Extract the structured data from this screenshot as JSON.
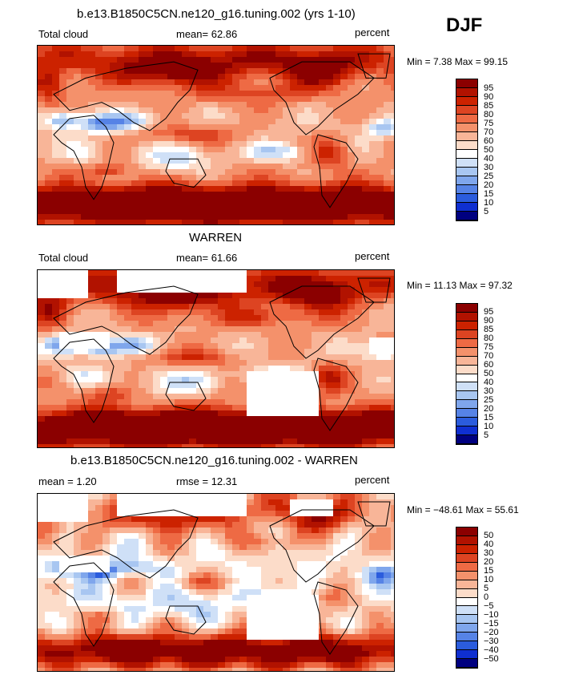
{
  "season": "DJF",
  "panels": [
    {
      "title": "b.e13.B1850C5CN.ne120_g16.tuning.002 (yrs 1-10)",
      "left_label": "Total cloud",
      "center_label": "mean=  62.86",
      "right_label": "percent",
      "min_max": "Min =   7.38 Max =  99.15",
      "colorbar": {
        "colors": [
          "#8b0000",
          "#b11200",
          "#cc2200",
          "#dd4422",
          "#ee6a44",
          "#f4916b",
          "#f8b598",
          "#fcdcc9",
          "#ffffff",
          "#cfe0f7",
          "#a8c6f1",
          "#7fa6ec",
          "#5683e6",
          "#2b5cdd",
          "#0f2fd1",
          "#000080"
        ],
        "labels": [
          "95",
          "90",
          "85",
          "80",
          "75",
          "70",
          "60",
          "50",
          "40",
          "30",
          "25",
          "20",
          "15",
          "10",
          "5"
        ]
      }
    },
    {
      "title": "WARREN",
      "left_label": "Total cloud",
      "center_label": "mean=  61.66",
      "right_label": "percent",
      "min_max": "Min =  11.13 Max =  97.32",
      "colorbar": {
        "colors": [
          "#8b0000",
          "#b11200",
          "#cc2200",
          "#dd4422",
          "#ee6a44",
          "#f4916b",
          "#f8b598",
          "#fcdcc9",
          "#ffffff",
          "#cfe0f7",
          "#a8c6f1",
          "#7fa6ec",
          "#5683e6",
          "#2b5cdd",
          "#0f2fd1",
          "#000080"
        ],
        "labels": [
          "95",
          "90",
          "85",
          "80",
          "75",
          "70",
          "60",
          "50",
          "40",
          "30",
          "25",
          "20",
          "15",
          "10",
          "5"
        ]
      }
    },
    {
      "title": "b.e13.B1850C5CN.ne120_g16.tuning.002 - WARREN",
      "left_label": "mean =    1.20",
      "center_label": "rmse =   12.31",
      "right_label": "percent",
      "min_max": "Min = −48.61 Max =  55.61",
      "colorbar": {
        "colors": [
          "#8b0000",
          "#b11200",
          "#cc2200",
          "#dd4422",
          "#ee6a44",
          "#f4916b",
          "#f8b598",
          "#fcdcc9",
          "#ffffff",
          "#cfe0f7",
          "#a8c6f1",
          "#7fa6ec",
          "#5683e6",
          "#2b5cdd",
          "#0f2fd1",
          "#000080"
        ],
        "labels": [
          "50",
          "40",
          "30",
          "20",
          "15",
          "10",
          "5",
          "0",
          "−5",
          "−10",
          "−15",
          "−20",
          "−30",
          "−40",
          "−50"
        ]
      }
    }
  ]
}
